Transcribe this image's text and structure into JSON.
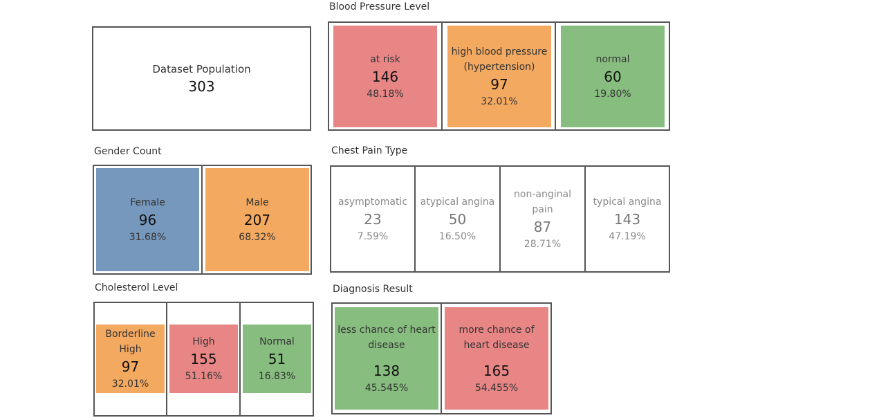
{
  "population": {
    "label": "Dataset Population",
    "value": "303"
  },
  "blood_pressure": {
    "title": "Blood Pressure Level",
    "items": [
      {
        "label": "at risk",
        "count": "146",
        "percent": "48.18%",
        "color": "#e88686"
      },
      {
        "label": "high blood pressure (hypertension)",
        "count": "97",
        "percent": "32.01%",
        "color": "#f4a960"
      },
      {
        "label": "normal",
        "count": "60",
        "percent": "19.80%",
        "color": "#87be7f"
      }
    ]
  },
  "gender": {
    "title": "Gender Count",
    "items": [
      {
        "label": "Female",
        "count": "96",
        "percent": "31.68%",
        "color": "#7698bd"
      },
      {
        "label": "Male",
        "count": "207",
        "percent": "68.32%",
        "color": "#f4a960"
      }
    ]
  },
  "chest_pain": {
    "title": "Chest Pain Type",
    "items": [
      {
        "label": "asymptomatic",
        "count": "23",
        "percent": "7.59%"
      },
      {
        "label": "atypical angina",
        "count": "50",
        "percent": "16.50%"
      },
      {
        "label": "non-anginal pain",
        "count": "87",
        "percent": "28.71%"
      },
      {
        "label": "typical angina",
        "count": "143",
        "percent": "47.19%"
      }
    ]
  },
  "cholesterol": {
    "title": "Cholesterol Level",
    "items": [
      {
        "label": "Borderline High",
        "count": "97",
        "percent": "32.01%",
        "color": "#f4a960"
      },
      {
        "label": "High",
        "count": "155",
        "percent": "51.16%",
        "color": "#e88686"
      },
      {
        "label": "Normal",
        "count": "51",
        "percent": "16.83%",
        "color": "#87be7f"
      }
    ]
  },
  "diagnosis": {
    "title": "Diagnosis Result",
    "items": [
      {
        "label": "less chance of heart disease",
        "count": "138",
        "percent": "45.545%",
        "color": "#87be7f"
      },
      {
        "label": "more chance of heart disease",
        "count": "165",
        "percent": "54.455%",
        "color": "#e88686"
      }
    ]
  }
}
